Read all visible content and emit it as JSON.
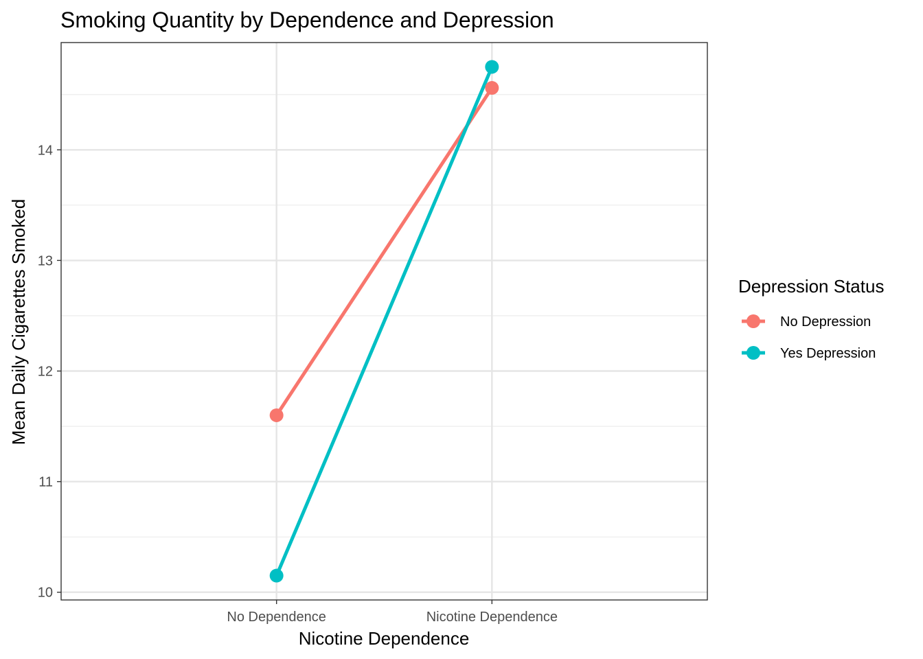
{
  "chart_data": {
    "type": "line",
    "title": "Smoking Quantity by Dependence and Depression",
    "xlabel": "Nicotine Dependence",
    "ylabel": "Mean Daily Cigarettes Smoked",
    "categories": [
      "No Dependence",
      "Nicotine Dependence"
    ],
    "y_ticks": [
      10,
      11,
      12,
      13,
      14
    ],
    "ylim": [
      9.93,
      14.97
    ],
    "grid": true,
    "legend": {
      "title": "Depression Status",
      "placement": "right"
    },
    "series": [
      {
        "name": "No Depression",
        "color": "#F8766D",
        "values": [
          11.6,
          14.56
        ]
      },
      {
        "name": "Yes Depression",
        "color": "#00BFC4",
        "values": [
          10.15,
          14.75
        ]
      }
    ]
  }
}
